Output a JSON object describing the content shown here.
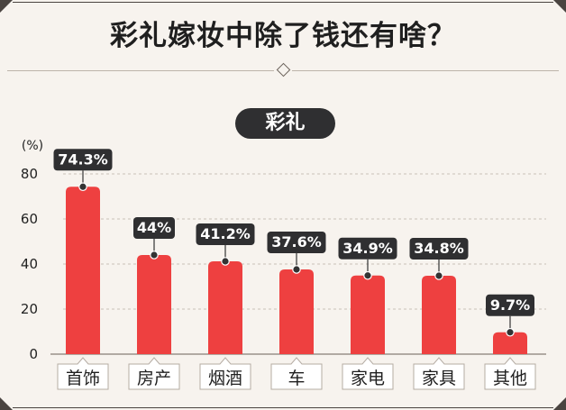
{
  "header": {
    "title": "彩礼嫁妆中除了钱还有啥？",
    "chart_pill": "彩礼"
  },
  "colors": {
    "bar": "#ee4040",
    "label_bg": "#2f2f31",
    "axis_text": "#222222",
    "grid": "#c8c0b8"
  },
  "chart_data": {
    "type": "bar",
    "title": "彩礼",
    "categories": [
      "首饰",
      "房产",
      "烟酒",
      "车",
      "家电",
      "家具",
      "其他"
    ],
    "values": [
      74.3,
      44,
      41.2,
      37.6,
      34.9,
      34.8,
      9.7
    ],
    "value_labels": [
      "74.3%",
      "44%",
      "41.2%",
      "37.6%",
      "34.9%",
      "34.8%",
      "9.7%"
    ],
    "ylabel": "(%)",
    "yticks": [
      0,
      20,
      40,
      60,
      80
    ],
    "ylim": [
      0,
      80
    ],
    "grid": true
  }
}
